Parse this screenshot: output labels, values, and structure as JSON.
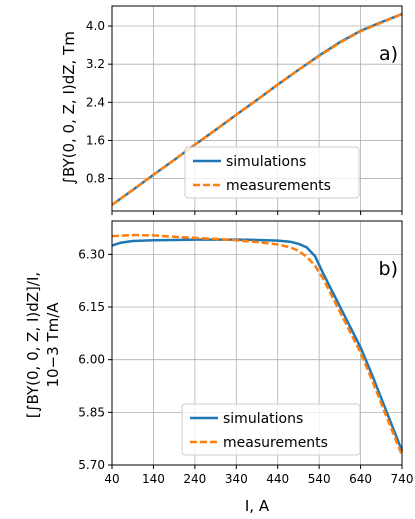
{
  "chart_data": [
    {
      "type": "line",
      "panel_label": "a)",
      "ylabel": "∫BY(0, 0, Z, I)dZ, Tm",
      "xlim": [
        40,
        740
      ],
      "ylim": [
        0.12,
        4.42
      ],
      "x_ticks": [
        40,
        140,
        240,
        340,
        440,
        540,
        640,
        740
      ],
      "y_ticks": [
        0.8,
        1.6,
        2.4,
        3.2,
        4.0
      ],
      "y_tick_labels": [
        "0.8",
        "1.6",
        "2.4",
        "3.2",
        "4.0"
      ],
      "grid": true,
      "legend_position": "lower right",
      "series": [
        {
          "name": "simulations",
          "color": "#1f77b4",
          "style": "solid",
          "x": [
            40,
            90,
            140,
            190,
            240,
            290,
            340,
            390,
            440,
            490,
            540,
            590,
            640,
            690,
            740
          ],
          "y": [
            0.25,
            0.56,
            0.88,
            1.19,
            1.51,
            1.82,
            2.14,
            2.45,
            2.77,
            3.08,
            3.38,
            3.66,
            3.9,
            4.08,
            4.25
          ]
        },
        {
          "name": "measurements",
          "color": "#ff7f0e",
          "style": "dashed",
          "x": [
            40,
            90,
            140,
            190,
            240,
            290,
            340,
            390,
            440,
            490,
            540,
            590,
            640,
            690,
            740
          ],
          "y": [
            0.25,
            0.56,
            0.88,
            1.19,
            1.51,
            1.82,
            2.14,
            2.45,
            2.77,
            3.08,
            3.37,
            3.65,
            3.89,
            4.07,
            4.25
          ]
        }
      ]
    },
    {
      "type": "line",
      "panel_label": "b)",
      "ylabel_line1": "[∫BY(0, 0, Z, I)dZ]/I,",
      "ylabel_line2": "10−3 Tm/A",
      "xlabel": "I, A",
      "xlim": [
        40,
        740
      ],
      "ylim": [
        5.7,
        6.395
      ],
      "x_ticks": [
        40,
        140,
        240,
        340,
        440,
        540,
        640,
        740
      ],
      "x_tick_labels": [
        "40",
        "140",
        "240",
        "340",
        "440",
        "540",
        "640",
        "740"
      ],
      "y_ticks": [
        5.7,
        5.85,
        6.0,
        6.15,
        6.3
      ],
      "y_tick_labels": [
        "5.70",
        "5.85",
        "6.00",
        "6.15",
        "6.30"
      ],
      "grid": true,
      "legend_position": "lower center",
      "series": [
        {
          "name": "simulations",
          "color": "#1f77b4",
          "style": "solid",
          "x": [
            40,
            60,
            90,
            140,
            190,
            240,
            290,
            340,
            390,
            440,
            470,
            490,
            510,
            530,
            550,
            580,
            610,
            640,
            670,
            700,
            740
          ],
          "y": [
            6.325,
            6.333,
            6.338,
            6.34,
            6.341,
            6.342,
            6.342,
            6.342,
            6.341,
            6.339,
            6.336,
            6.33,
            6.32,
            6.295,
            6.245,
            6.175,
            6.105,
            6.035,
            5.95,
            5.86,
            5.74
          ]
        },
        {
          "name": "measurements",
          "color": "#ff7f0e",
          "style": "dashed",
          "x": [
            40,
            90,
            140,
            190,
            240,
            290,
            340,
            390,
            440,
            470,
            490,
            510,
            530,
            550,
            580,
            610,
            640,
            670,
            700,
            740
          ],
          "y": [
            6.352,
            6.355,
            6.354,
            6.35,
            6.347,
            6.344,
            6.34,
            6.335,
            6.328,
            6.32,
            6.31,
            6.293,
            6.268,
            6.23,
            6.16,
            6.09,
            6.02,
            5.935,
            5.845,
            5.728
          ]
        }
      ]
    }
  ]
}
